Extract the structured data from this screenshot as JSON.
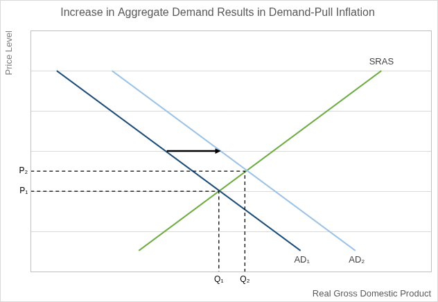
{
  "chart_data": {
    "type": "line",
    "title": "Increase in Aggregate Demand Results in Demand-Pull Inflation",
    "x_label": "Real Gross Domestic Product",
    "y_label": "Price Level",
    "xlim": [
      0,
      10
    ],
    "ylim": [
      0,
      6
    ],
    "xticks": [
      {
        "value": 4.7,
        "label": "Q₁"
      },
      {
        "value": 5.35,
        "label": "Q₂"
      }
    ],
    "yticks": [
      {
        "value": 2,
        "label": "P₁"
      },
      {
        "value": 2.5,
        "label": "P₂"
      }
    ],
    "y_gridlines": [
      1,
      2,
      3,
      4,
      5,
      6
    ],
    "grid": true,
    "series": [
      {
        "name": "AD₁",
        "color": "#1f4e79",
        "x": [
          0.65,
          6.74
        ],
        "values": [
          5,
          0.52
        ]
      },
      {
        "name": "AD₂",
        "color": "#9dc3e6",
        "x": [
          2.03,
          8.11
        ],
        "values": [
          5,
          0.52
        ]
      },
      {
        "name": "SRAS",
        "color": "#70ad47",
        "x": [
          2.7,
          8.76
        ],
        "values": [
          0.52,
          5
        ]
      }
    ],
    "shift_arrow": {
      "x": [
        3.4,
        4.75
      ],
      "values": [
        3,
        3
      ]
    }
  }
}
